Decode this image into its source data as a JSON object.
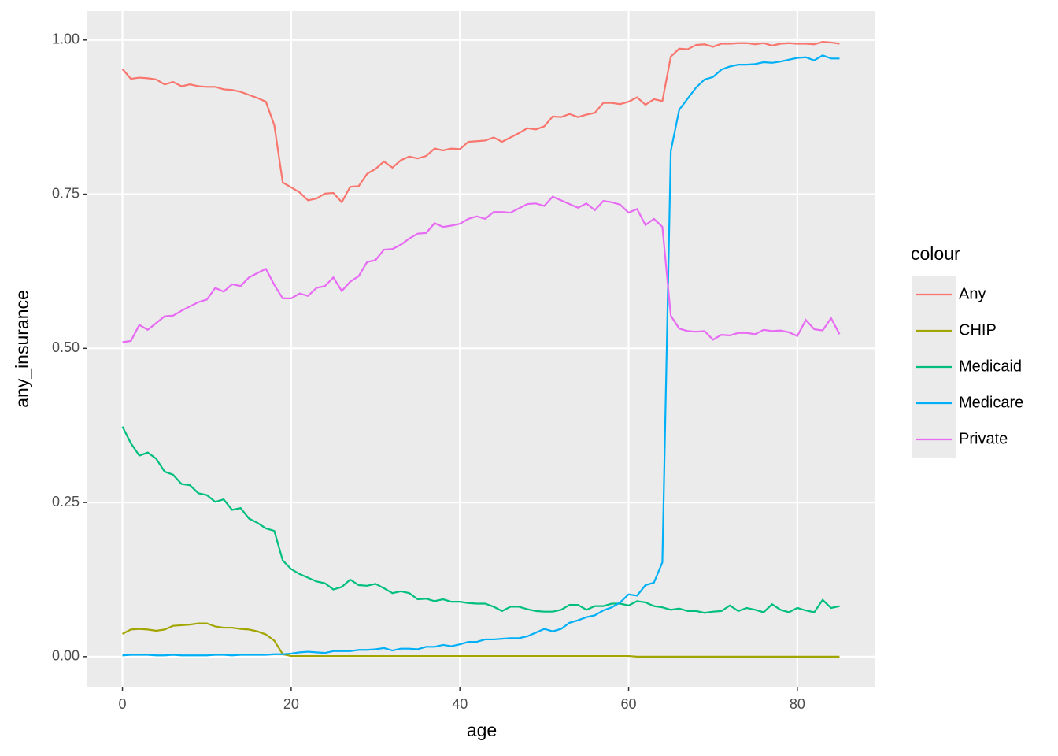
{
  "chart_data": {
    "type": "line",
    "x_label": "age",
    "y_label": "any_insurance",
    "legend_title": "colour",
    "x": [
      0,
      1,
      2,
      3,
      4,
      5,
      6,
      7,
      8,
      9,
      10,
      11,
      12,
      13,
      14,
      15,
      16,
      17,
      18,
      19,
      20,
      21,
      22,
      23,
      24,
      25,
      26,
      27,
      28,
      29,
      30,
      31,
      32,
      33,
      34,
      35,
      36,
      37,
      38,
      39,
      40,
      41,
      42,
      43,
      44,
      45,
      46,
      47,
      48,
      49,
      50,
      51,
      52,
      53,
      54,
      55,
      56,
      57,
      58,
      59,
      60,
      61,
      62,
      63,
      64,
      65,
      66,
      67,
      68,
      69,
      70,
      71,
      72,
      73,
      74,
      75,
      76,
      77,
      78,
      79,
      80,
      81,
      82,
      83,
      84,
      85
    ],
    "xlim": [
      -4.25,
      89.25
    ],
    "xticks": [
      0,
      20,
      40,
      60,
      80
    ],
    "ylim": [
      -0.05,
      1.047
    ],
    "yticks": [
      {
        "value": 0,
        "label": "0.00"
      },
      {
        "value": 0.25,
        "label": "0.25"
      },
      {
        "value": 0.5,
        "label": "0.50"
      },
      {
        "value": 0.75,
        "label": "0.75"
      },
      {
        "value": 1,
        "label": "1.00"
      }
    ],
    "grid": true,
    "legend_position": "right",
    "series": [
      {
        "name": "Any",
        "color": "#f8766d",
        "values": [
          0.953,
          0.937,
          0.939,
          0.938,
          0.936,
          0.928,
          0.932,
          0.925,
          0.928,
          0.925,
          0.924,
          0.924,
          0.92,
          0.919,
          0.916,
          0.911,
          0.906,
          0.9,
          0.862,
          0.769,
          0.761,
          0.753,
          0.74,
          0.743,
          0.751,
          0.752,
          0.737,
          0.762,
          0.763,
          0.783,
          0.791,
          0.803,
          0.793,
          0.805,
          0.811,
          0.808,
          0.812,
          0.824,
          0.821,
          0.824,
          0.823,
          0.835,
          0.836,
          0.837,
          0.842,
          0.835,
          0.842,
          0.849,
          0.857,
          0.855,
          0.86,
          0.876,
          0.875,
          0.88,
          0.875,
          0.879,
          0.882,
          0.898,
          0.898,
          0.896,
          0.9,
          0.907,
          0.895,
          0.904,
          0.901,
          0.973,
          0.986,
          0.985,
          0.992,
          0.993,
          0.989,
          0.994,
          0.994,
          0.995,
          0.995,
          0.993,
          0.995,
          0.991,
          0.994,
          0.995,
          0.994,
          0.994,
          0.993,
          0.997,
          0.996,
          0.994
        ]
      },
      {
        "name": "CHIP",
        "color": "#a3a500",
        "values": [
          0.037,
          0.044,
          0.045,
          0.044,
          0.042,
          0.044,
          0.05,
          0.051,
          0.052,
          0.054,
          0.054,
          0.049,
          0.047,
          0.047,
          0.045,
          0.044,
          0.041,
          0.036,
          0.026,
          0.004,
          0.001,
          0.001,
          0.001,
          0.001,
          0.001,
          0.001,
          0.001,
          0.001,
          0.001,
          0.001,
          0.001,
          0.001,
          0.001,
          0.001,
          0.001,
          0.001,
          0.001,
          0.001,
          0.001,
          0.001,
          0.001,
          0.001,
          0.001,
          0.001,
          0.001,
          0.001,
          0.001,
          0.001,
          0.001,
          0.001,
          0.001,
          0.001,
          0.001,
          0.001,
          0.001,
          0.001,
          0.001,
          0.001,
          0.001,
          0.001,
          0.001,
          0,
          0,
          0,
          0,
          0,
          0,
          0,
          0,
          0,
          0,
          0,
          0,
          0,
          0,
          0,
          0,
          0,
          0,
          0,
          0,
          0,
          0,
          0,
          0,
          0
        ]
      },
      {
        "name": "Medicaid",
        "color": "#00bf7d",
        "values": [
          0.373,
          0.346,
          0.326,
          0.331,
          0.321,
          0.3,
          0.295,
          0.28,
          0.278,
          0.265,
          0.262,
          0.251,
          0.255,
          0.238,
          0.241,
          0.224,
          0.217,
          0.208,
          0.204,
          0.156,
          0.142,
          0.134,
          0.128,
          0.122,
          0.119,
          0.109,
          0.113,
          0.125,
          0.116,
          0.115,
          0.118,
          0.111,
          0.103,
          0.106,
          0.103,
          0.093,
          0.094,
          0.09,
          0.093,
          0.089,
          0.089,
          0.087,
          0.086,
          0.086,
          0.081,
          0.074,
          0.081,
          0.081,
          0.077,
          0.074,
          0.073,
          0.073,
          0.076,
          0.084,
          0.084,
          0.076,
          0.082,
          0.082,
          0.086,
          0.086,
          0.083,
          0.09,
          0.088,
          0.082,
          0.08,
          0.076,
          0.078,
          0.074,
          0.074,
          0.071,
          0.073,
          0.074,
          0.083,
          0.074,
          0.079,
          0.076,
          0.072,
          0.085,
          0.076,
          0.072,
          0.079,
          0.075,
          0.072,
          0.092,
          0.079,
          0.082
        ]
      },
      {
        "name": "Medicare",
        "color": "#00b0f6",
        "values": [
          0.002,
          0.003,
          0.003,
          0.003,
          0.002,
          0.002,
          0.003,
          0.002,
          0.002,
          0.002,
          0.002,
          0.003,
          0.003,
          0.002,
          0.003,
          0.003,
          0.003,
          0.003,
          0.004,
          0.004,
          0.005,
          0.007,
          0.008,
          0.007,
          0.006,
          0.009,
          0.009,
          0.009,
          0.011,
          0.011,
          0.012,
          0.014,
          0.01,
          0.013,
          0.013,
          0.012,
          0.016,
          0.016,
          0.019,
          0.017,
          0.02,
          0.024,
          0.024,
          0.028,
          0.028,
          0.029,
          0.03,
          0.03,
          0.033,
          0.039,
          0.045,
          0.041,
          0.045,
          0.055,
          0.059,
          0.064,
          0.067,
          0.075,
          0.08,
          0.088,
          0.101,
          0.099,
          0.116,
          0.12,
          0.153,
          0.82,
          0.887,
          0.905,
          0.923,
          0.936,
          0.94,
          0.952,
          0.957,
          0.96,
          0.96,
          0.961,
          0.964,
          0.963,
          0.965,
          0.968,
          0.971,
          0.972,
          0.967,
          0.975,
          0.97,
          0.97
        ]
      },
      {
        "name": "Private",
        "color": "#e76bf3",
        "values": [
          0.51,
          0.512,
          0.538,
          0.53,
          0.541,
          0.552,
          0.553,
          0.561,
          0.568,
          0.575,
          0.579,
          0.598,
          0.592,
          0.604,
          0.601,
          0.615,
          0.622,
          0.629,
          0.603,
          0.581,
          0.581,
          0.589,
          0.585,
          0.598,
          0.601,
          0.615,
          0.593,
          0.608,
          0.617,
          0.64,
          0.643,
          0.66,
          0.661,
          0.668,
          0.678,
          0.686,
          0.687,
          0.703,
          0.697,
          0.699,
          0.702,
          0.71,
          0.714,
          0.71,
          0.721,
          0.721,
          0.72,
          0.727,
          0.734,
          0.735,
          0.731,
          0.746,
          0.74,
          0.734,
          0.728,
          0.735,
          0.724,
          0.739,
          0.737,
          0.733,
          0.72,
          0.726,
          0.7,
          0.71,
          0.697,
          0.553,
          0.532,
          0.528,
          0.527,
          0.528,
          0.514,
          0.522,
          0.521,
          0.525,
          0.525,
          0.523,
          0.53,
          0.528,
          0.529,
          0.526,
          0.52,
          0.546,
          0.531,
          0.529,
          0.549,
          0.523
        ]
      }
    ]
  }
}
